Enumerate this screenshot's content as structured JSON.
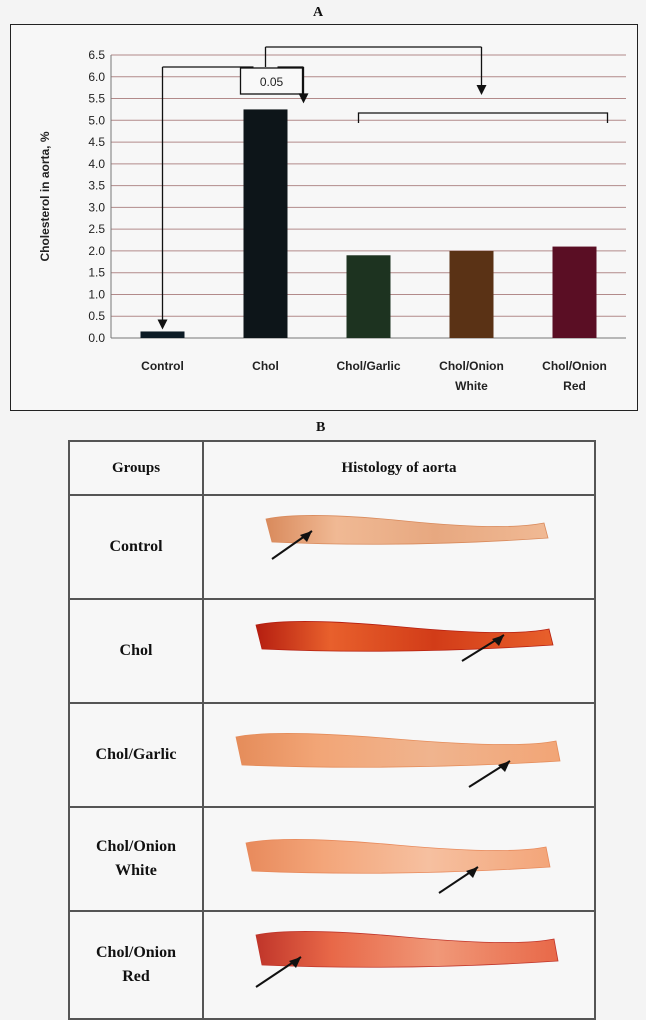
{
  "panel_a_label": "A",
  "panel_b_label": "B",
  "chart_data": {
    "type": "bar",
    "categories": [
      "Control",
      "Chol",
      "Chol/Garlic",
      "Chol/Onion White",
      "Chol/Onion Red"
    ],
    "category_lines": [
      [
        "Control"
      ],
      [
        "Chol"
      ],
      [
        "Chol/Garlic"
      ],
      [
        "Chol/Onion",
        "White"
      ],
      [
        "Chol/Onion",
        "Red"
      ]
    ],
    "values": [
      0.15,
      5.25,
      1.9,
      2.0,
      2.1
    ],
    "colors": [
      "#0b1a24",
      "#0d1519",
      "#1d3320",
      "#5a3215",
      "#5a0e24"
    ],
    "title": "",
    "xlabel": "",
    "ylabel": "Cholesterol in aorta, %",
    "ylim": [
      0,
      6.5
    ],
    "yticks": [
      "0.0",
      "0.5",
      "1.0",
      "1.5",
      "2.0",
      "2.5",
      "3.0",
      "3.5",
      "4.0",
      "4.5",
      "5.0",
      "5.5",
      "6.0",
      "6.5"
    ],
    "grid": true,
    "annotation": "0.05"
  },
  "table": {
    "headers": [
      "Groups",
      "Histology of aorta"
    ],
    "rows": [
      {
        "group_lines": [
          "Control"
        ]
      },
      {
        "group_lines": [
          "Chol"
        ]
      },
      {
        "group_lines": [
          "Chol/Garlic"
        ]
      },
      {
        "group_lines": [
          "Chol/Onion",
          "White"
        ]
      },
      {
        "group_lines": [
          "Chol/Onion",
          "Red"
        ]
      }
    ]
  }
}
